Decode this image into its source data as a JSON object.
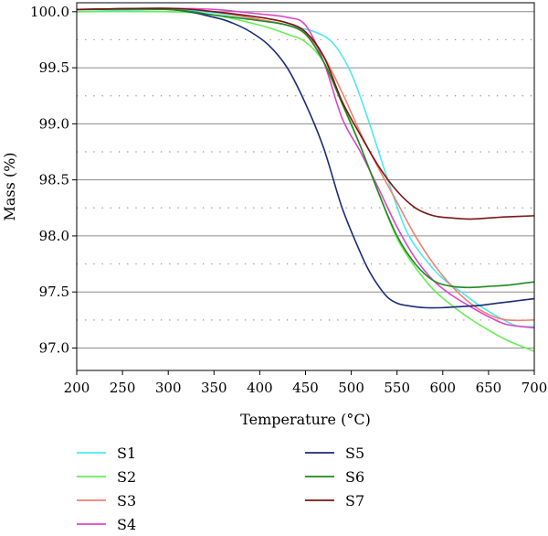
{
  "chart_data": {
    "type": "line",
    "title": "",
    "xlabel": "Temperature (°C)",
    "ylabel": "Mass (%)",
    "xlim": [
      200,
      700
    ],
    "ylim": [
      96.8,
      100.08
    ],
    "xticks": [
      200,
      250,
      300,
      350,
      400,
      450,
      500,
      550,
      600,
      650,
      700
    ],
    "yticks": [
      97.0,
      97.5,
      98.0,
      98.5,
      99.0,
      99.5,
      100.0
    ],
    "ytick_labels": [
      "97.0",
      "97.5",
      "98.0",
      "98.5",
      "99.0",
      "99.5",
      "100.0"
    ],
    "grid": {
      "major": "solid",
      "minor": "dotted"
    },
    "legend_position": "below",
    "series": [
      {
        "name": "S1",
        "color": "#4de8f0",
        "x": [
          200,
          300,
          350,
          400,
          440,
          460,
          480,
          500,
          520,
          540,
          560,
          580,
          600,
          620,
          640,
          660,
          680,
          700
        ],
        "y": [
          100.0,
          100.02,
          99.99,
          99.93,
          99.86,
          99.82,
          99.72,
          99.45,
          99.0,
          98.5,
          98.05,
          97.8,
          97.62,
          97.5,
          97.38,
          97.28,
          97.2,
          97.19
        ]
      },
      {
        "name": "S2",
        "color": "#66ee55",
        "x": [
          200,
          300,
          350,
          400,
          430,
          450,
          470,
          490,
          510,
          530,
          550,
          570,
          590,
          610,
          630,
          650,
          670,
          700
        ],
        "y": [
          100.0,
          100.0,
          99.97,
          99.88,
          99.8,
          99.73,
          99.55,
          99.2,
          98.8,
          98.38,
          97.98,
          97.72,
          97.52,
          97.38,
          97.26,
          97.16,
          97.07,
          96.97
        ]
      },
      {
        "name": "S3",
        "color": "#f08070",
        "x": [
          200,
          300,
          350,
          400,
          430,
          450,
          470,
          490,
          510,
          530,
          550,
          570,
          590,
          610,
          630,
          650,
          670,
          700
        ],
        "y": [
          100.02,
          100.03,
          100.0,
          99.93,
          99.88,
          99.8,
          99.6,
          99.28,
          98.92,
          98.6,
          98.3,
          98.0,
          97.75,
          97.55,
          97.4,
          97.3,
          97.25,
          97.25
        ]
      },
      {
        "name": "S4",
        "color": "#dd44cc",
        "x": [
          200,
          300,
          350,
          400,
          430,
          450,
          470,
          490,
          510,
          530,
          550,
          570,
          590,
          610,
          630,
          650,
          670,
          700
        ],
        "y": [
          100.02,
          100.03,
          100.02,
          99.98,
          99.95,
          99.88,
          99.55,
          99.05,
          98.75,
          98.42,
          98.08,
          97.8,
          97.6,
          97.47,
          97.37,
          97.28,
          97.21,
          97.18
        ]
      },
      {
        "name": "S5",
        "color": "#1a2a7a",
        "x": [
          200,
          300,
          350,
          370,
          390,
          410,
          430,
          450,
          470,
          490,
          510,
          520,
          530,
          540,
          550,
          560,
          580,
          600,
          620,
          640,
          660,
          680,
          700
        ],
        "y": [
          100.02,
          100.02,
          99.95,
          99.9,
          99.82,
          99.7,
          99.5,
          99.18,
          98.78,
          98.25,
          97.85,
          97.68,
          97.55,
          97.45,
          97.4,
          97.38,
          97.36,
          97.36,
          97.37,
          97.38,
          97.4,
          97.42,
          97.44
        ]
      },
      {
        "name": "S6",
        "color": "#1f8a1f",
        "x": [
          200,
          300,
          350,
          400,
          430,
          450,
          470,
          490,
          510,
          530,
          550,
          570,
          590,
          610,
          630,
          650,
          670,
          700
        ],
        "y": [
          100.02,
          100.02,
          99.97,
          99.92,
          99.88,
          99.8,
          99.55,
          99.18,
          98.8,
          98.38,
          98.0,
          97.75,
          97.6,
          97.55,
          97.54,
          97.55,
          97.56,
          97.59
        ]
      },
      {
        "name": "S7",
        "color": "#7a1515",
        "x": [
          200,
          300,
          350,
          400,
          430,
          450,
          470,
          490,
          510,
          530,
          550,
          570,
          590,
          610,
          630,
          650,
          670,
          700
        ],
        "y": [
          100.02,
          100.03,
          100.0,
          99.95,
          99.9,
          99.82,
          99.6,
          99.2,
          98.9,
          98.62,
          98.4,
          98.25,
          98.18,
          98.16,
          98.15,
          98.16,
          98.17,
          98.18
        ]
      }
    ]
  }
}
